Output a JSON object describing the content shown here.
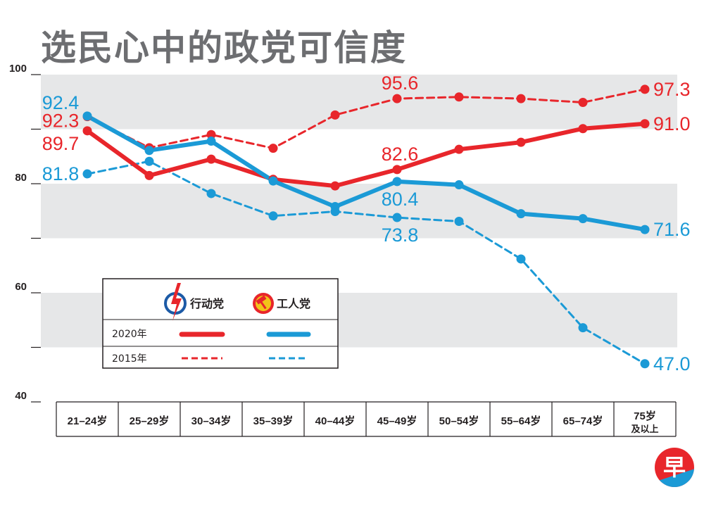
{
  "title": "选民心中的政党可信度",
  "colors": {
    "pap": "#e8262b",
    "wp": "#1b9ad6",
    "band": "#e6e7e8",
    "text": "#231f20"
  },
  "legend": {
    "pap_name": "行动党",
    "wp_name": "工人党",
    "year_2020": "2020年",
    "year_2015": "2015年"
  },
  "badge_text": "早",
  "chart_data": {
    "type": "line",
    "title": "选民心中的政党可信度",
    "ylim": [
      40,
      100
    ],
    "yticks": [
      40,
      60,
      80,
      100
    ],
    "categories": [
      "21–24岁",
      "25–29岁",
      "30–34岁",
      "35–39岁",
      "40–44岁",
      "45–49岁",
      "50–54岁",
      "55–64岁",
      "65–74岁",
      "75岁\n及以上"
    ],
    "series": [
      {
        "name": "行动党 2020年",
        "party": "pap",
        "style": "solid",
        "values": [
          89.7,
          81.5,
          84.5,
          80.8,
          79.6,
          82.6,
          86.3,
          87.6,
          90.1,
          91.0
        ]
      },
      {
        "name": "工人党 2020年",
        "party": "wp",
        "style": "solid",
        "values": [
          92.4,
          86.1,
          87.8,
          80.5,
          75.8,
          80.4,
          79.8,
          74.5,
          73.6,
          71.6
        ]
      },
      {
        "name": "行动党 2015年",
        "party": "pap",
        "style": "dashed",
        "values": [
          92.3,
          86.6,
          89.0,
          86.5,
          92.6,
          95.6,
          95.9,
          95.6,
          94.9,
          97.3
        ]
      },
      {
        "name": "工人党 2015年",
        "party": "wp",
        "style": "dashed",
        "values": [
          81.8,
          84.1,
          78.2,
          74.1,
          74.9,
          73.8,
          73.1,
          66.2,
          53.6,
          47.0
        ]
      }
    ],
    "annotations": [
      {
        "text": "92.4",
        "series": 1,
        "index": 0,
        "pos": "left-above"
      },
      {
        "text": "92.3",
        "series": 2,
        "index": 0,
        "pos": "left-below"
      },
      {
        "text": "89.7",
        "series": 0,
        "index": 0,
        "pos": "left-below"
      },
      {
        "text": "81.8",
        "series": 3,
        "index": 0,
        "pos": "left"
      },
      {
        "text": "95.6",
        "series": 2,
        "index": 5,
        "pos": "above"
      },
      {
        "text": "82.6",
        "series": 0,
        "index": 5,
        "pos": "above"
      },
      {
        "text": "80.4",
        "series": 1,
        "index": 5,
        "pos": "below"
      },
      {
        "text": "73.8",
        "series": 3,
        "index": 5,
        "pos": "below"
      },
      {
        "text": "97.3",
        "series": 2,
        "index": 9,
        "pos": "right"
      },
      {
        "text": "91.0",
        "series": 0,
        "index": 9,
        "pos": "right"
      },
      {
        "text": "71.6",
        "series": 1,
        "index": 9,
        "pos": "right"
      },
      {
        "text": "47.0",
        "series": 3,
        "index": 9,
        "pos": "right"
      }
    ]
  }
}
